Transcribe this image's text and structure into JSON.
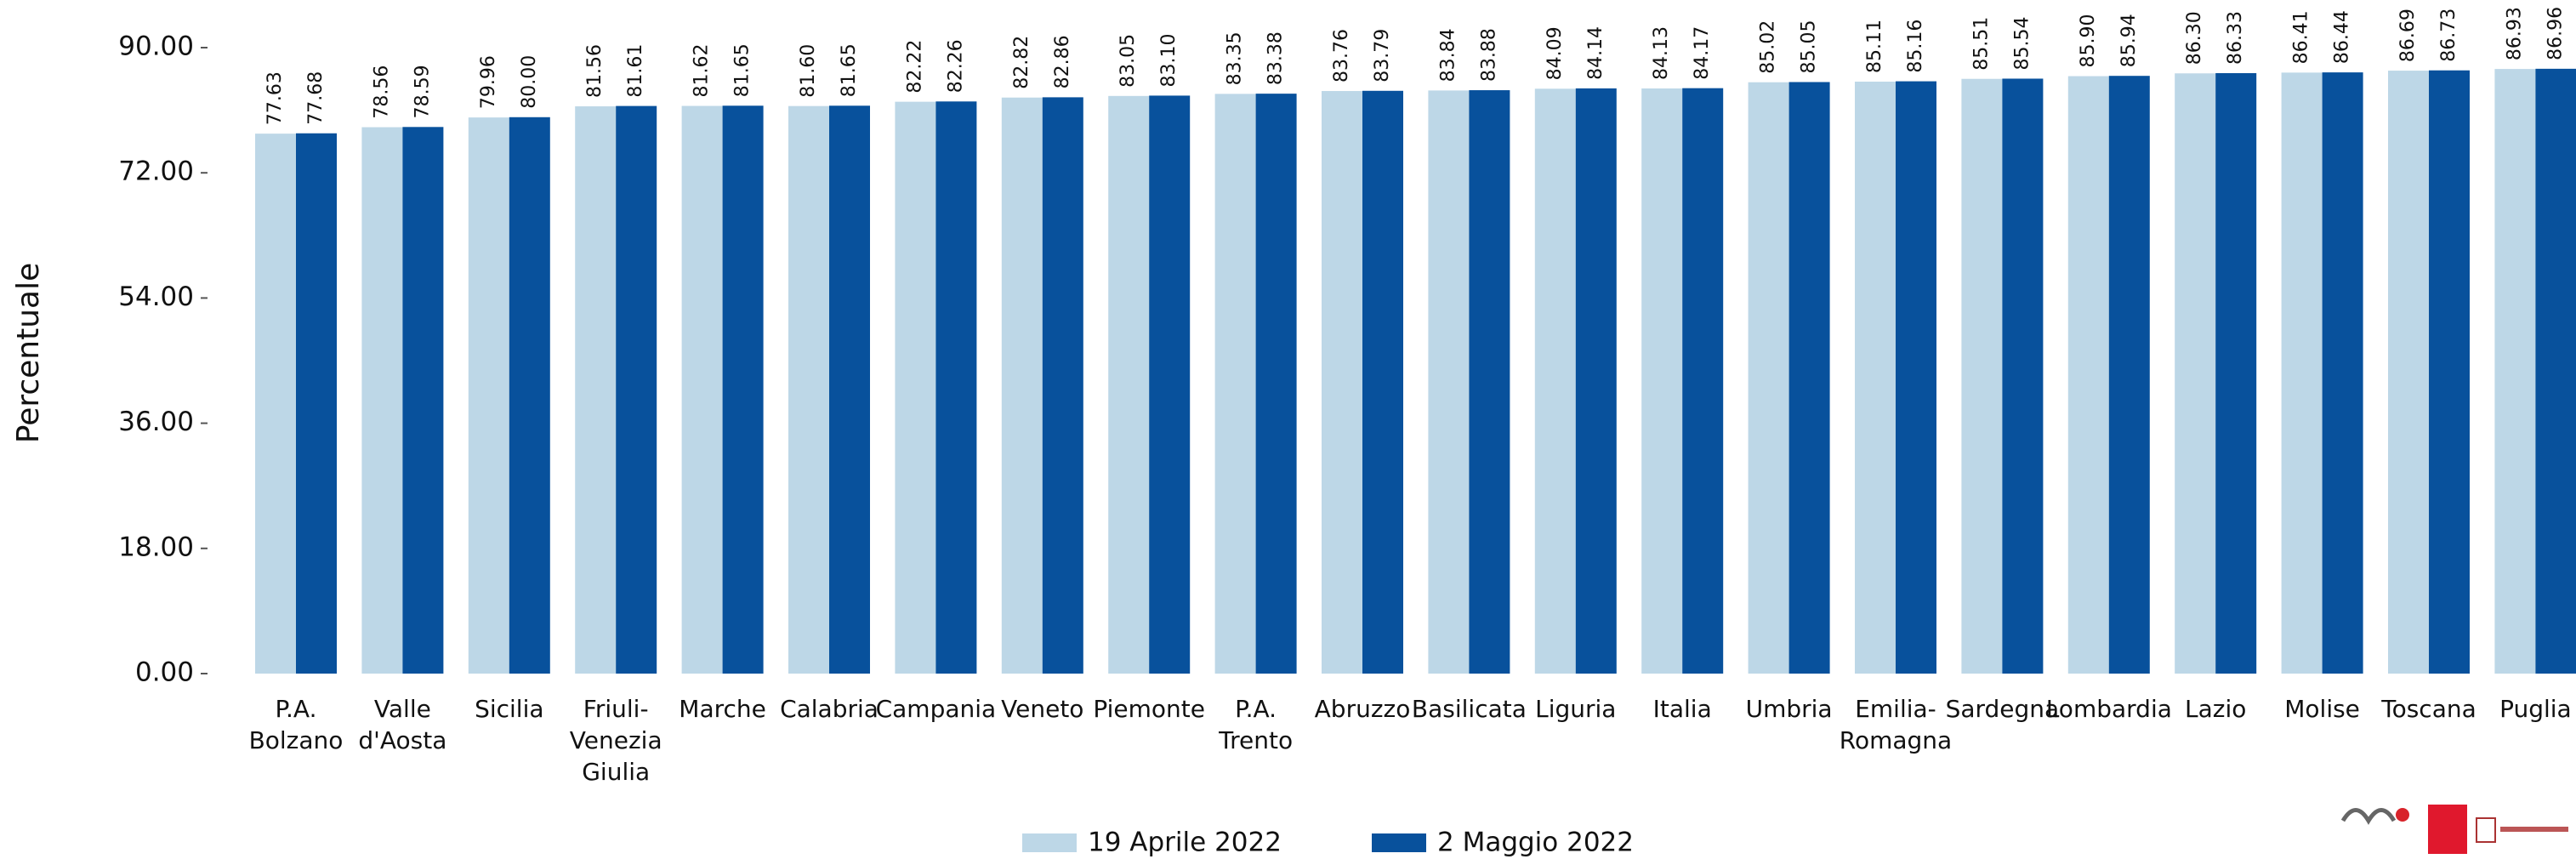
{
  "chart_data": {
    "type": "bar",
    "y_label": "Percentuale",
    "categories": [
      "P.A.\nBolzano",
      "Valle\nd'Aosta",
      "Sicilia",
      "Friuli-\nVenezia\nGiulia",
      "Marche",
      "Calabria",
      "Campania",
      "Veneto",
      "Piemonte",
      "P.A.\nTrento",
      "Abruzzo",
      "Basilicata",
      "Liguria",
      "Italia",
      "Umbria",
      "Emilia-\nRomagna",
      "Sardegna",
      "Lombardia",
      "Lazio",
      "Molise",
      "Toscana",
      "Puglia"
    ],
    "series": [
      {
        "name": "19 Aprile 2022",
        "color": "#bdd7e7",
        "values": [
          77.63,
          78.56,
          79.96,
          81.56,
          81.62,
          81.6,
          82.22,
          82.82,
          83.05,
          83.35,
          83.76,
          83.84,
          84.09,
          84.13,
          85.02,
          85.11,
          85.51,
          85.9,
          86.3,
          86.41,
          86.69,
          86.93
        ],
        "value_labels": [
          "77.63",
          "78.56",
          "79.96",
          "81.56",
          "81.62",
          "81.60",
          "82.22",
          "82.82",
          "83.05",
          "83.35",
          "83.76",
          "83.84",
          "84.09",
          "84.13",
          "85.02",
          "85.11",
          "85.51",
          "85.90",
          "86.30",
          "86.41",
          "86.69",
          "86.93"
        ]
      },
      {
        "name": "2 Maggio 2022",
        "color": "#08519c",
        "values": [
          77.68,
          78.59,
          80.0,
          81.61,
          81.65,
          81.65,
          82.26,
          82.86,
          83.1,
          83.38,
          83.79,
          83.88,
          84.14,
          84.17,
          85.05,
          85.16,
          85.54,
          85.94,
          86.33,
          86.44,
          86.73,
          86.96
        ],
        "value_labels": [
          "77.68",
          "78.59",
          "80.00",
          "81.61",
          "81.65",
          "81.65",
          "82.26",
          "82.86",
          "83.10",
          "83.38",
          "83.79",
          "83.88",
          "84.14",
          "84.17",
          "85.05",
          "85.16",
          "85.54",
          "85.94",
          "86.33",
          "86.44",
          "86.73",
          "86.96"
        ]
      }
    ],
    "ylim": [
      0,
      90
    ],
    "yticks": [
      {
        "value": 0,
        "label": "0.00"
      },
      {
        "value": 18,
        "label": "18.00"
      },
      {
        "value": 36,
        "label": "36.00"
      },
      {
        "value": 54,
        "label": "54.00"
      },
      {
        "value": 72,
        "label": "72.00"
      },
      {
        "value": 90,
        "label": "90.00"
      }
    ],
    "grid": false,
    "legend": "bottom"
  }
}
